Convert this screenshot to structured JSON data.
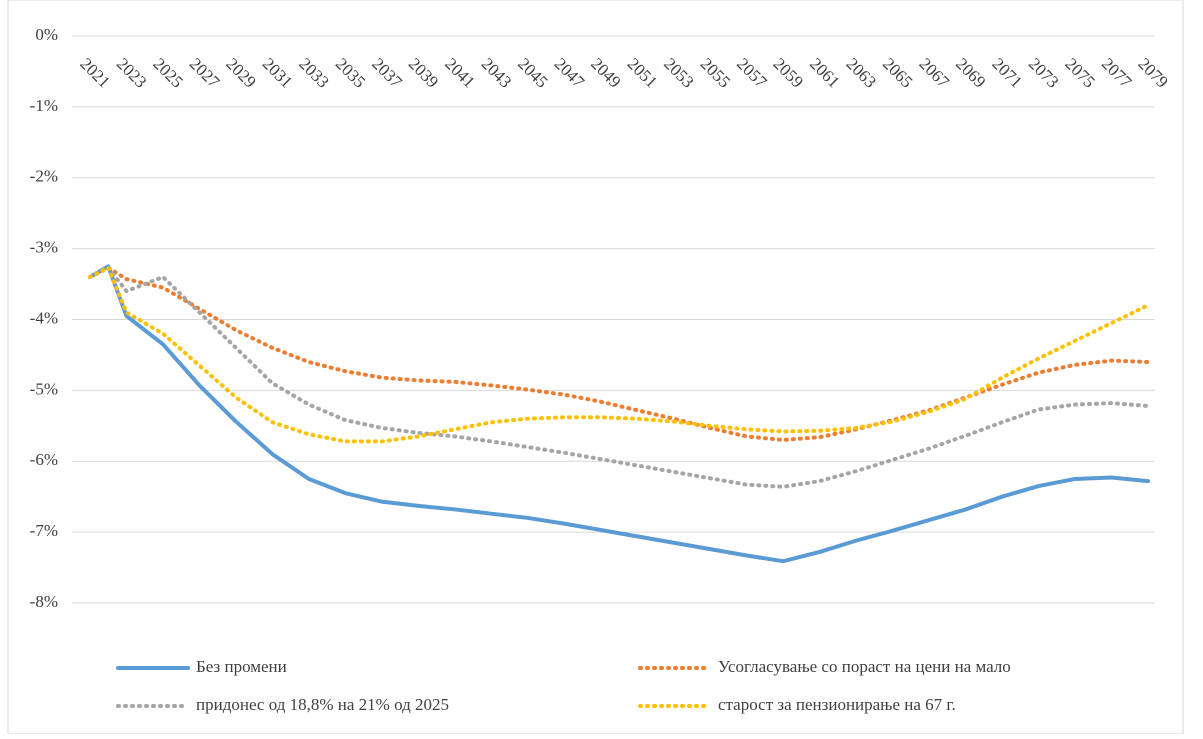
{
  "chart_data": {
    "type": "line",
    "x": [
      2021,
      2022,
      2023,
      2025,
      2027,
      2029,
      2031,
      2033,
      2035,
      2037,
      2039,
      2041,
      2043,
      2045,
      2047,
      2049,
      2051,
      2053,
      2055,
      2057,
      2059,
      2061,
      2063,
      2065,
      2067,
      2069,
      2071,
      2073,
      2075,
      2077,
      2079
    ],
    "xlim": [
      2021,
      2079
    ],
    "xticks": [
      2021,
      2023,
      2025,
      2027,
      2029,
      2031,
      2033,
      2035,
      2037,
      2039,
      2041,
      2043,
      2045,
      2047,
      2049,
      2051,
      2053,
      2055,
      2057,
      2059,
      2061,
      2063,
      2065,
      2067,
      2069,
      2071,
      2073,
      2075,
      2077,
      2079
    ],
    "ylim": [
      -8,
      0
    ],
    "yticks": [
      {
        "value": 0,
        "label": "0%"
      },
      {
        "value": -1,
        "label": "-1%"
      },
      {
        "value": -2,
        "label": "-2%"
      },
      {
        "value": -3,
        "label": "-3%"
      },
      {
        "value": -4,
        "label": "-4%"
      },
      {
        "value": -5,
        "label": "-5%"
      },
      {
        "value": -6,
        "label": "-6%"
      },
      {
        "value": -7,
        "label": "-7%"
      },
      {
        "value": -8,
        "label": "-8%"
      }
    ],
    "grid": true,
    "legend": "bottom",
    "series": [
      {
        "name": "Без промени",
        "color": "#5b9bd5",
        "style": "solid",
        "values": [
          -3.4,
          -3.25,
          -3.95,
          -4.35,
          -4.93,
          -5.44,
          -5.9,
          -6.25,
          -6.45,
          -6.57,
          -6.63,
          -6.68,
          -6.74,
          -6.8,
          -6.88,
          -6.97,
          -7.06,
          -7.15,
          -7.24,
          -7.33,
          -7.41,
          -7.28,
          -7.12,
          -6.98,
          -6.83,
          -6.68,
          -6.5,
          -6.35,
          -6.25,
          -6.23,
          -6.28
        ]
      },
      {
        "name": "Усогласување со пораст на цени на мало",
        "color": "#ed7d31",
        "style": "dotted",
        "values": [
          -3.4,
          -3.27,
          -3.43,
          -3.55,
          -3.85,
          -4.15,
          -4.4,
          -4.6,
          -4.73,
          -4.82,
          -4.86,
          -4.88,
          -4.93,
          -4.99,
          -5.06,
          -5.16,
          -5.28,
          -5.4,
          -5.53,
          -5.65,
          -5.7,
          -5.66,
          -5.55,
          -5.42,
          -5.28,
          -5.1,
          -4.92,
          -4.75,
          -4.64,
          -4.58,
          -4.6
        ]
      },
      {
        "name": "придонес од 18,8% на 21% од 2025",
        "color": "#a5a5a5",
        "style": "dotted",
        "values": [
          -3.4,
          -3.27,
          -3.6,
          -3.4,
          -3.9,
          -4.4,
          -4.9,
          -5.2,
          -5.42,
          -5.53,
          -5.6,
          -5.65,
          -5.72,
          -5.8,
          -5.88,
          -5.97,
          -6.06,
          -6.15,
          -6.24,
          -6.33,
          -6.36,
          -6.28,
          -6.14,
          -5.98,
          -5.82,
          -5.64,
          -5.45,
          -5.27,
          -5.2,
          -5.18,
          -5.22
        ]
      },
      {
        "name": "старост за пензионирање на 67 г.",
        "color": "#ffc000",
        "style": "dotted",
        "values": [
          -3.4,
          -3.27,
          -3.9,
          -4.2,
          -4.65,
          -5.1,
          -5.45,
          -5.62,
          -5.72,
          -5.72,
          -5.65,
          -5.55,
          -5.45,
          -5.4,
          -5.38,
          -5.38,
          -5.4,
          -5.44,
          -5.5,
          -5.55,
          -5.58,
          -5.57,
          -5.53,
          -5.44,
          -5.3,
          -5.12,
          -4.82,
          -4.55,
          -4.3,
          -4.05,
          -3.8
        ]
      }
    ]
  }
}
